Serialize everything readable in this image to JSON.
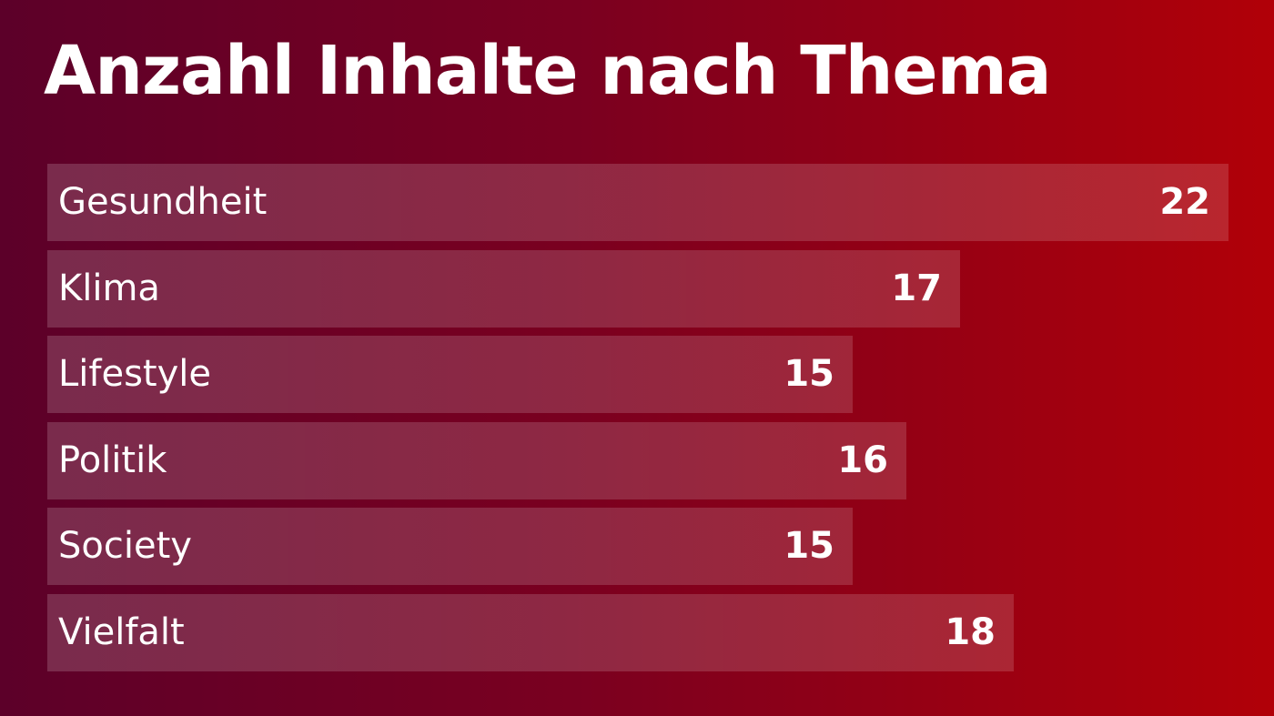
{
  "title": "Anzahl Inhalte nach Thema",
  "colors": {
    "background_start": "#5c0029",
    "background_end": "#b10008",
    "bar": "rgba(255,255,255,0.16)",
    "text": "#ffffff"
  },
  "chart_data": {
    "type": "bar",
    "orientation": "horizontal",
    "title": "Anzahl Inhalte nach Thema",
    "categories": [
      "Gesundheit",
      "Klima",
      "Lifestyle",
      "Politik",
      "Society",
      "Vielfalt"
    ],
    "values": [
      22,
      17,
      15,
      16,
      15,
      18
    ],
    "xlim": [
      0,
      22
    ],
    "grid": false,
    "data_labels": true
  }
}
